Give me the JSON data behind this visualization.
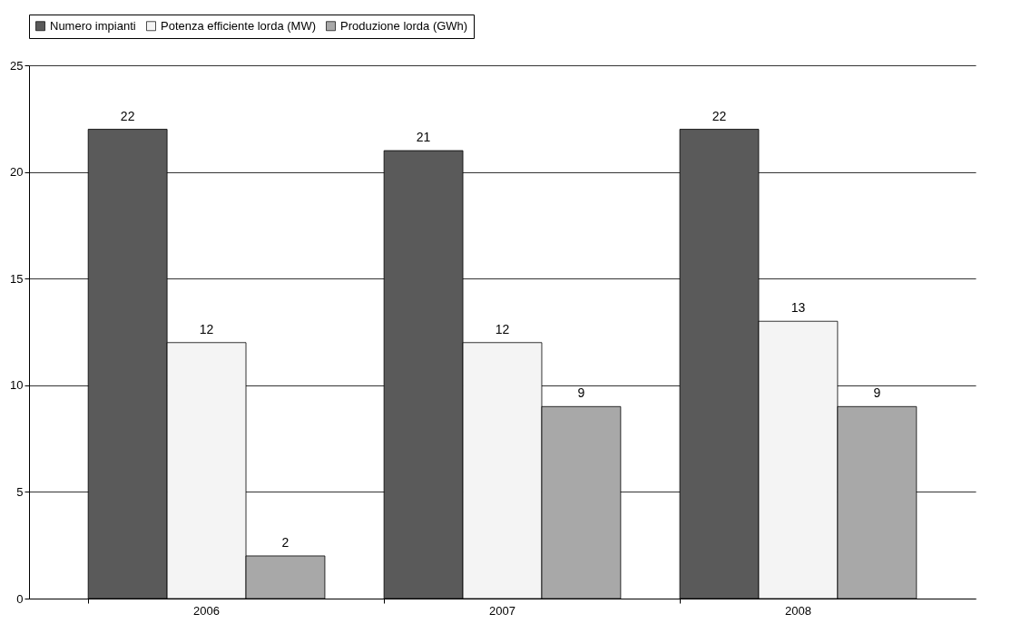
{
  "chart_data": {
    "type": "bar",
    "categories": [
      "2006",
      "2007",
      "2008"
    ],
    "series": [
      {
        "name": "Numero impianti",
        "color": "#5a5a5a",
        "values": [
          22,
          21,
          22
        ]
      },
      {
        "name": "Potenza efficiente lorda (MW)",
        "color": "#f4f4f4",
        "values": [
          12,
          12,
          13
        ]
      },
      {
        "name": "Produzione lorda (GWh)",
        "color": "#a8a8a8",
        "values": [
          2,
          9,
          9
        ]
      }
    ],
    "ylim": [
      0,
      25
    ],
    "yticks": [
      0,
      5,
      10,
      15,
      20,
      25
    ],
    "grid": "y",
    "legend": "top",
    "data_labels": true
  }
}
